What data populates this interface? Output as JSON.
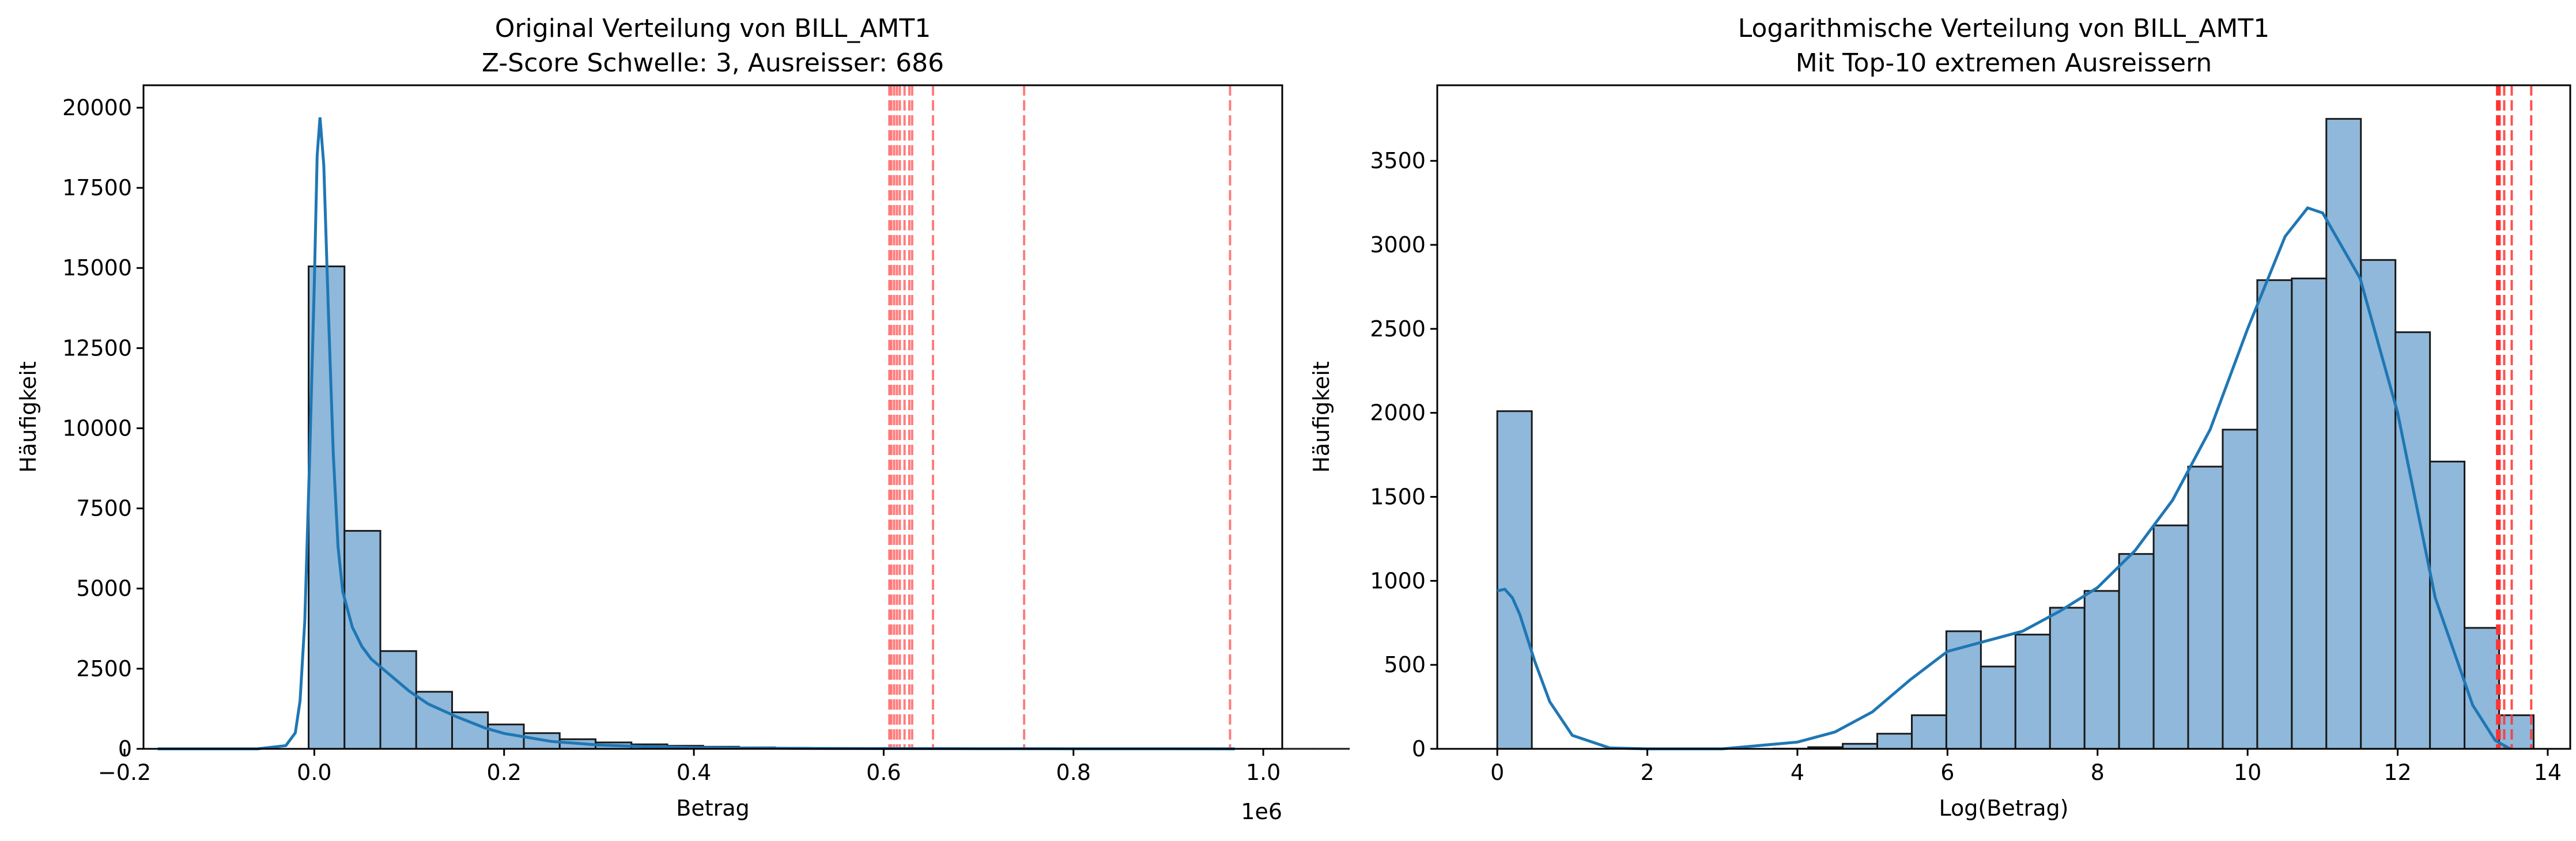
{
  "chart_data": [
    {
      "type": "bar",
      "title": "Original Verteilung von BILL_AMT1",
      "subtitle": "Z-Score Schwelle: 3, Ausreisser: 686",
      "xlabel": "Betrag",
      "ylabel": "Häufigkeit",
      "x_offset_label": "1e6",
      "xlim": [
        -0.18,
        1.02
      ],
      "ylim": [
        0,
        20700
      ],
      "xticks": [
        -0.2,
        0.0,
        0.2,
        0.4,
        0.6,
        0.8,
        1.0
      ],
      "xtick_labels": [
        "−0.2",
        "0.0",
        "0.2",
        "0.4",
        "0.6",
        "0.8",
        "1.0"
      ],
      "yticks": [
        0,
        2500,
        5000,
        7500,
        10000,
        12500,
        15000,
        17500,
        20000
      ],
      "ytick_labels": [
        "0",
        "2500",
        "5000",
        "7500",
        "10000",
        "12500",
        "15000",
        "17500",
        "20000"
      ],
      "bins": {
        "start": -0.006,
        "width": 0.0378,
        "counts": [
          15050,
          6800,
          3050,
          1780,
          1140,
          760,
          490,
          300,
          200,
          140,
          95,
          65,
          45,
          30,
          20,
          12,
          8,
          5,
          4,
          3,
          3,
          2,
          2,
          1,
          1,
          1,
          1,
          1,
          1
        ]
      },
      "kde": {
        "x": [
          -0.165,
          -0.06,
          -0.03,
          -0.02,
          -0.015,
          -0.01,
          -0.005,
          0.0,
          0.003,
          0.006,
          0.01,
          0.015,
          0.02,
          0.025,
          0.03,
          0.04,
          0.05,
          0.06,
          0.08,
          0.1,
          0.12,
          0.15,
          0.18,
          0.2,
          0.25,
          0.3,
          0.35,
          0.4,
          0.5,
          0.6,
          0.7,
          0.8,
          0.9,
          0.97
        ],
        "y": [
          0,
          0,
          100,
          500,
          1500,
          4000,
          9000,
          14500,
          18500,
          19700,
          18200,
          13500,
          9200,
          6300,
          4900,
          3800,
          3200,
          2800,
          2300,
          1800,
          1400,
          1000,
          650,
          480,
          230,
          120,
          70,
          40,
          15,
          8,
          5,
          3,
          2,
          0
        ]
      },
      "outlier_lines_x": [
        0.606,
        0.608,
        0.611,
        0.614,
        0.617,
        0.622,
        0.627,
        0.63,
        0.652,
        0.748,
        0.965
      ],
      "colors": {
        "bar": "#8fb8da",
        "edge": "#1a1a1a",
        "kde": "#1f77b4",
        "outlier": "#ff6666"
      }
    },
    {
      "type": "bar",
      "title": "Logarithmische Verteilung von BILL_AMT1",
      "subtitle": "Mit Top-10 extremen Ausreissern",
      "xlabel": "Log(Betrag)",
      "ylabel": "Häufigkeit",
      "xlim": [
        -0.8,
        14.3
      ],
      "ylim": [
        0,
        3950
      ],
      "xticks": [
        0,
        2,
        4,
        6,
        8,
        10,
        12,
        14
      ],
      "xtick_labels": [
        "0",
        "2",
        "4",
        "6",
        "8",
        "10",
        "12",
        "14"
      ],
      "yticks": [
        0,
        500,
        1000,
        1500,
        2000,
        2500,
        3000,
        3500
      ],
      "ytick_labels": [
        "0",
        "500",
        "1000",
        "1500",
        "2000",
        "2500",
        "3000",
        "3500"
      ],
      "bins": {
        "start": 0.0,
        "width": 0.4604,
        "counts": [
          2010,
          0,
          0,
          0,
          0,
          0,
          0,
          0,
          1,
          10,
          30,
          90,
          200,
          700,
          490,
          680,
          840,
          940,
          1160,
          1330,
          1680,
          1900,
          2790,
          2800,
          3750,
          2910,
          2480,
          1710,
          720,
          200
        ]
      },
      "kde": {
        "x": [
          0,
          0.1,
          0.2,
          0.3,
          0.5,
          0.7,
          1.0,
          1.5,
          2.0,
          3.0,
          4.0,
          4.5,
          5.0,
          5.5,
          6.0,
          6.5,
          7.0,
          7.5,
          8.0,
          8.5,
          9.0,
          9.5,
          10.0,
          10.5,
          10.8,
          11.0,
          11.5,
          12.0,
          12.5,
          13.0,
          13.3,
          13.5
        ],
        "y": [
          940,
          950,
          900,
          800,
          520,
          280,
          80,
          5,
          0,
          0,
          40,
          100,
          220,
          410,
          580,
          640,
          700,
          820,
          960,
          1180,
          1480,
          1900,
          2500,
          3050,
          3220,
          3190,
          2800,
          2000,
          900,
          260,
          50,
          0
        ]
      },
      "outlier_lines_x": [
        13.325,
        13.33,
        13.335,
        13.34,
        13.345,
        13.35,
        13.36,
        13.42,
        13.52,
        13.78
      ],
      "colors": {
        "bar": "#8fb8da",
        "edge": "#1a1a1a",
        "kde": "#1f77b4",
        "outlier": "#ff3333"
      }
    }
  ]
}
